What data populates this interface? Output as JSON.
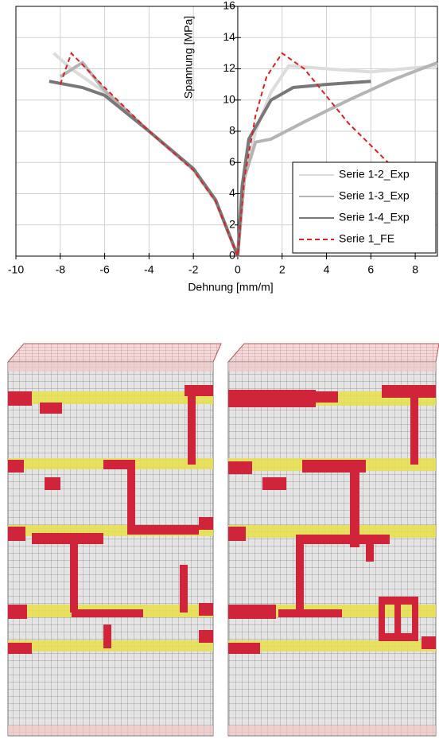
{
  "chart_data": {
    "type": "line",
    "x_label": "Dehnung [mm/m]",
    "y_label": "Spannung [MPa]",
    "xlim": [
      -10,
      9
    ],
    "ylim": [
      0,
      16
    ],
    "xticks": [
      -10,
      -8,
      -6,
      -4,
      -2,
      0,
      2,
      4,
      6,
      8
    ],
    "yticks": [
      0,
      2,
      4,
      6,
      8,
      10,
      12,
      14,
      16
    ],
    "grid": true,
    "legend": "lower right",
    "series": [
      {
        "name": "Serie 1-2_Exp",
        "color": "#dcdcdc",
        "dash": false,
        "x": [
          -8.3,
          -7.5,
          -6,
          -4,
          -2,
          -1,
          0,
          0.3,
          0.8,
          1.5,
          2.3,
          4,
          6,
          9
        ],
        "values": [
          13,
          12,
          10.5,
          8,
          5.5,
          3.5,
          0,
          5,
          8,
          10.5,
          12.2,
          12,
          11.8,
          12.2
        ]
      },
      {
        "name": "Serie 1-3_Exp",
        "color": "#b4b4b4",
        "dash": false,
        "x": [
          -8,
          -7,
          -6,
          -4,
          -2,
          -1,
          0,
          0.3,
          0.8,
          1.5,
          3,
          5,
          7,
          9
        ],
        "values": [
          11.5,
          12.4,
          10.6,
          8,
          5.6,
          3.6,
          0,
          5,
          7.3,
          7.5,
          8.6,
          10,
          11.3,
          12.4
        ]
      },
      {
        "name": "Serie 1-4_Exp",
        "color": "#787878",
        "dash": false,
        "x": [
          -8.5,
          -7,
          -6,
          -4,
          -2,
          -1,
          0,
          0.2,
          0.5,
          1.5,
          2.5,
          4,
          6
        ],
        "values": [
          11.2,
          10.8,
          10.3,
          8,
          5.6,
          3.6,
          0,
          4.5,
          7.5,
          10,
          10.8,
          11,
          11.2
        ]
      },
      {
        "name": "Serie 1_FE",
        "color": "#e02020",
        "dash": true,
        "x": [
          -8,
          -7.5,
          -6,
          -4,
          -2,
          -1,
          0,
          0.3,
          0.8,
          1.3,
          2,
          3,
          5,
          7.2
        ],
        "values": [
          11,
          13,
          10.8,
          8,
          5.5,
          3.5,
          0,
          5,
          9,
          11.5,
          13,
          12,
          8.5,
          5.4
        ]
      }
    ]
  }
}
